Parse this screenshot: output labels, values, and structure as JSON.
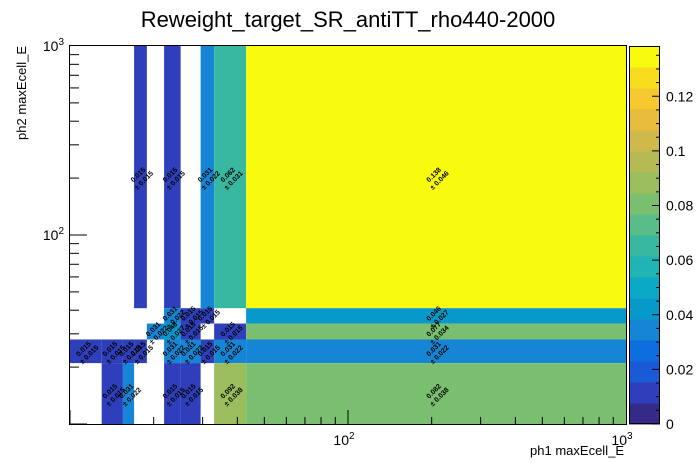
{
  "chart_data": {
    "type": "heatmap",
    "title": "Reweight_target_SR_antiTT_rho440-2000",
    "xlabel": "ph1 maxEcell_E",
    "ylabel": "ph2 maxEcell_E",
    "x_scale": "log",
    "y_scale": "log",
    "xlim": [
      10,
      1000
    ],
    "ylim": [
      10,
      1000
    ],
    "x_tick_labels": [
      {
        "base": "10",
        "exp": "2",
        "value": 100
      },
      {
        "base": "10",
        "exp": "3",
        "value": 1000
      }
    ],
    "y_tick_labels": [
      {
        "base": "10",
        "exp": "2",
        "value": 100
      },
      {
        "base": "10",
        "exp": "3",
        "value": 1000
      }
    ],
    "zlim": [
      0,
      0.1384
    ],
    "colorbar_ticks": [
      "0",
      "0.02",
      "0.04",
      "0.06",
      "0.08",
      "0.1",
      "0.12"
    ],
    "palette": [
      "#352a87",
      "#2f3fbb",
      "#1b5ad6",
      "#0d6fdf",
      "#1585d5",
      "#0899cb",
      "#0aa9c5",
      "#20b4b5",
      "#38b8a0",
      "#58bd88",
      "#7abf70",
      "#9bbd5e",
      "#b6ba55",
      "#cfb94a",
      "#e7bb3c",
      "#f7c830",
      "#f8dd1f",
      "#f9fb0e"
    ],
    "cells": [
      {
        "x0": 17,
        "x1": 18.9,
        "y0": 41,
        "y1": 1000,
        "value": 0.015,
        "error": 0.015
      },
      {
        "x0": 21.8,
        "x1": 25,
        "y0": 41,
        "y1": 1000,
        "value": 0.015,
        "error": 0.015
      },
      {
        "x0": 29.5,
        "x1": 33,
        "y0": 41,
        "y1": 1000,
        "value": 0.031,
        "error": 0.022
      },
      {
        "x0": 33,
        "x1": 43,
        "y0": 41,
        "y1": 1000,
        "value": 0.062,
        "error": 0.031
      },
      {
        "x0": 43,
        "x1": 1000,
        "y0": 41,
        "y1": 1000,
        "value": 0.138,
        "error": 0.046
      },
      {
        "x0": 21.8,
        "x1": 25,
        "y0": 34,
        "y1": 41,
        "value": 0.031,
        "error": 0.022
      },
      {
        "x0": 25,
        "x1": 29.5,
        "y0": 34,
        "y1": 41,
        "value": 0.015,
        "error": 0.015
      },
      {
        "x0": 29.5,
        "x1": 33,
        "y0": 34,
        "y1": 41,
        "value": 0.015,
        "error": 0.015
      },
      {
        "x0": 43,
        "x1": 1000,
        "y0": 34,
        "y1": 41,
        "value": 0.046,
        "error": 0.027
      },
      {
        "x0": 18.9,
        "x1": 21.8,
        "y0": 28,
        "y1": 34,
        "value": 0.031,
        "error": 0.022
      },
      {
        "x0": 21.8,
        "x1": 25,
        "y0": 28,
        "y1": 34,
        "value": 0.046,
        "error": 0.027
      },
      {
        "x0": 25,
        "x1": 29.5,
        "y0": 28,
        "y1": 34,
        "value": 0.015,
        "error": 0.015
      },
      {
        "x0": 33,
        "x1": 43,
        "y0": 28,
        "y1": 34,
        "value": 0.015,
        "error": 0.015
      },
      {
        "x0": 43,
        "x1": 1000,
        "y0": 28,
        "y1": 34,
        "value": 0.077,
        "error": 0.034
      },
      {
        "x0": 10,
        "x1": 13,
        "y0": 21,
        "y1": 28,
        "value": 0.015,
        "error": 0.015
      },
      {
        "x0": 13,
        "x1": 15.5,
        "y0": 21,
        "y1": 28,
        "value": 0.015,
        "error": 0.015
      },
      {
        "x0": 15.5,
        "x1": 17,
        "y0": 21,
        "y1": 28,
        "value": 0.015,
        "error": 0.015
      },
      {
        "x0": 17,
        "x1": 18.9,
        "y0": 21,
        "y1": 28,
        "value": 0.015,
        "error": 0.015
      },
      {
        "x0": 21.8,
        "x1": 25,
        "y0": 21,
        "y1": 28,
        "value": 0.031,
        "error": 0.022
      },
      {
        "x0": 25,
        "x1": 29.5,
        "y0": 21,
        "y1": 28,
        "value": 0.031,
        "error": 0.022
      },
      {
        "x0": 29.5,
        "x1": 33,
        "y0": 21,
        "y1": 28,
        "value": 0.015,
        "error": 0.015
      },
      {
        "x0": 33,
        "x1": 43,
        "y0": 21,
        "y1": 28,
        "value": 0.031,
        "error": 0.022
      },
      {
        "x0": 43,
        "x1": 1000,
        "y0": 21,
        "y1": 28,
        "value": 0.031,
        "error": 0.022
      },
      {
        "x0": 13,
        "x1": 15.5,
        "y0": 10,
        "y1": 21,
        "value": 0.015,
        "error": 0.015
      },
      {
        "x0": 15.5,
        "x1": 17,
        "y0": 10,
        "y1": 21,
        "value": 0.031,
        "error": 0.022
      },
      {
        "x0": 21.8,
        "x1": 25,
        "y0": 10,
        "y1": 21,
        "value": 0.015,
        "error": 0.015
      },
      {
        "x0": 25,
        "x1": 29.5,
        "y0": 10,
        "y1": 21,
        "value": 0.015,
        "error": 0.015
      },
      {
        "x0": 33,
        "x1": 43,
        "y0": 10,
        "y1": 21,
        "value": 0.092,
        "error": 0.038
      },
      {
        "x0": 43,
        "x1": 1000,
        "y0": 10,
        "y1": 21,
        "value": 0.082,
        "error": 0.038
      }
    ]
  }
}
